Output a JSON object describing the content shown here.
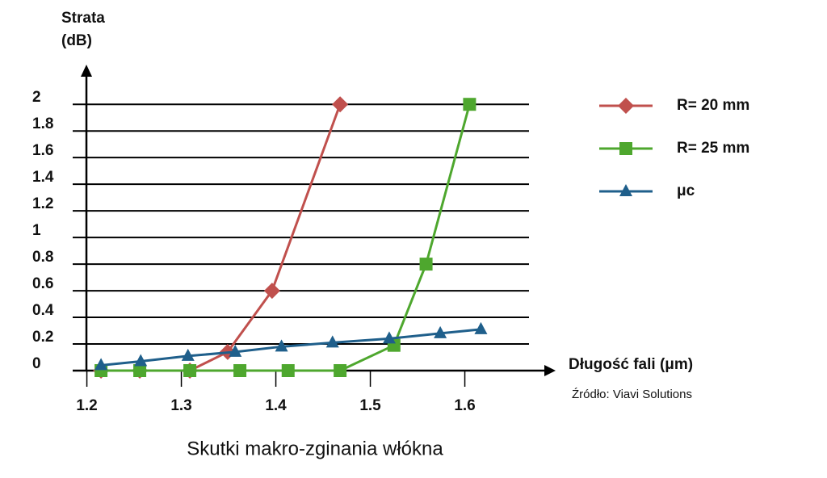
{
  "chart_data": {
    "type": "line",
    "caption": "Skutki makro-zginania włókna",
    "source": "Źródło: Viavi Solutions",
    "ylabel": [
      "Strata",
      "(dB)"
    ],
    "xlabel": "Długość fali (μm)",
    "xlim": [
      1.185,
      1.685
    ],
    "ylim": [
      0,
      2.25
    ],
    "xticks": [
      1.2,
      1.3,
      1.4,
      1.5,
      1.6
    ],
    "yticks": [
      0,
      0.2,
      0.4,
      0.6,
      0.8,
      1,
      1.2,
      1.4,
      1.6,
      1.8,
      2
    ],
    "grid": true,
    "series": [
      {
        "name": "R= 20 mm",
        "color": "#c0504d",
        "marker": "diamond",
        "x": [
          1.215,
          1.256,
          1.309,
          1.349,
          1.396,
          1.468
        ],
        "values": [
          0,
          0,
          0,
          0.14,
          0.6,
          2
        ]
      },
      {
        "name": "R= 25 mm",
        "color": "#4ea72e",
        "marker": "square",
        "x": [
          1.215,
          1.256,
          1.309,
          1.362,
          1.413,
          1.468,
          1.525,
          1.559,
          1.605
        ],
        "values": [
          0,
          0,
          0,
          0,
          0,
          0,
          0.19,
          0.8,
          2
        ]
      },
      {
        "name": "μc",
        "color": "#1f5f8b",
        "marker": "triangle",
        "x": [
          1.215,
          1.257,
          1.307,
          1.357,
          1.406,
          1.46,
          1.52,
          1.574,
          1.617
        ],
        "values": [
          0.04,
          0.07,
          0.11,
          0.14,
          0.18,
          0.21,
          0.24,
          0.28,
          0.31
        ]
      }
    ]
  }
}
